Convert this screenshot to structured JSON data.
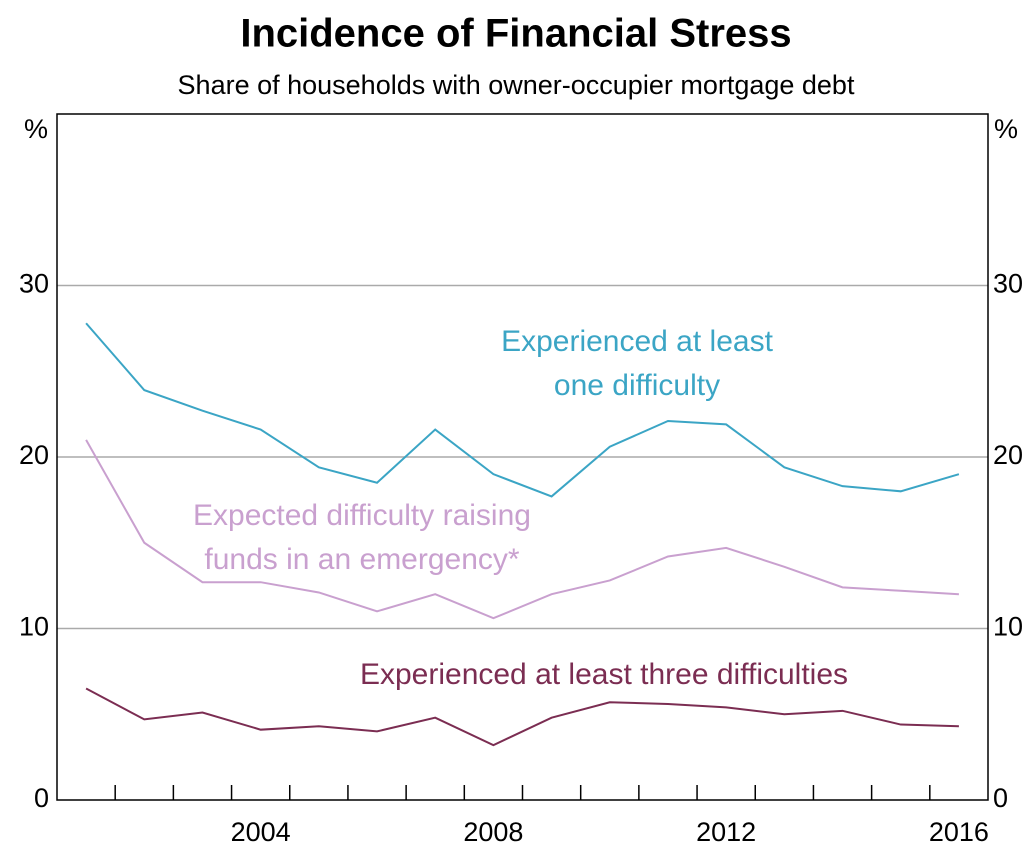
{
  "chart_data": {
    "type": "line",
    "title": "Incidence of Financial Stress",
    "subtitle": "Share of households with owner-occupier mortgage debt",
    "y_unit": "%",
    "x": [
      2001,
      2002,
      2003,
      2004,
      2005,
      2006,
      2007,
      2008,
      2009,
      2010,
      2011,
      2012,
      2013,
      2014,
      2015,
      2016
    ],
    "xlim": [
      2000.5,
      2016.5
    ],
    "xticks": [
      2004,
      2008,
      2012,
      2016
    ],
    "xminorticks": [
      2001.5,
      2002.5,
      2003.5,
      2004.5,
      2005.5,
      2006.5,
      2007.5,
      2008.5,
      2009.5,
      2010.5,
      2011.5,
      2012.5,
      2013.5,
      2014.5,
      2015.5
    ],
    "ylim": [
      0,
      40
    ],
    "yticks": [
      0,
      10,
      20,
      30
    ],
    "y2lim": [
      0,
      40
    ],
    "y2ticks": [
      0,
      10,
      20,
      30
    ],
    "grid": true,
    "series": [
      {
        "name": [
          "Experienced at least",
          "one difficulty"
        ],
        "color": "#3ba5c5",
        "values": [
          27.8,
          23.9,
          22.7,
          21.6,
          19.4,
          18.5,
          21.6,
          19.0,
          17.7,
          20.6,
          22.1,
          21.9,
          19.4,
          18.3,
          18.0,
          19.0
        ]
      },
      {
        "name": [
          "Expected difficulty raising",
          "funds in an emergency*"
        ],
        "color": "#c9a0cf",
        "values": [
          21.0,
          15.0,
          12.7,
          12.7,
          12.1,
          11.0,
          12.0,
          10.6,
          12.0,
          12.8,
          14.2,
          14.7,
          13.6,
          12.4,
          12.2,
          12.0
        ]
      },
      {
        "name": [
          "Experienced at least three difficulties"
        ],
        "color": "#7b2d52",
        "values": [
          6.5,
          4.7,
          5.1,
          4.1,
          4.3,
          4.0,
          4.8,
          3.2,
          4.8,
          5.7,
          5.6,
          5.4,
          5.0,
          5.2,
          4.4,
          4.3
        ]
      }
    ]
  }
}
